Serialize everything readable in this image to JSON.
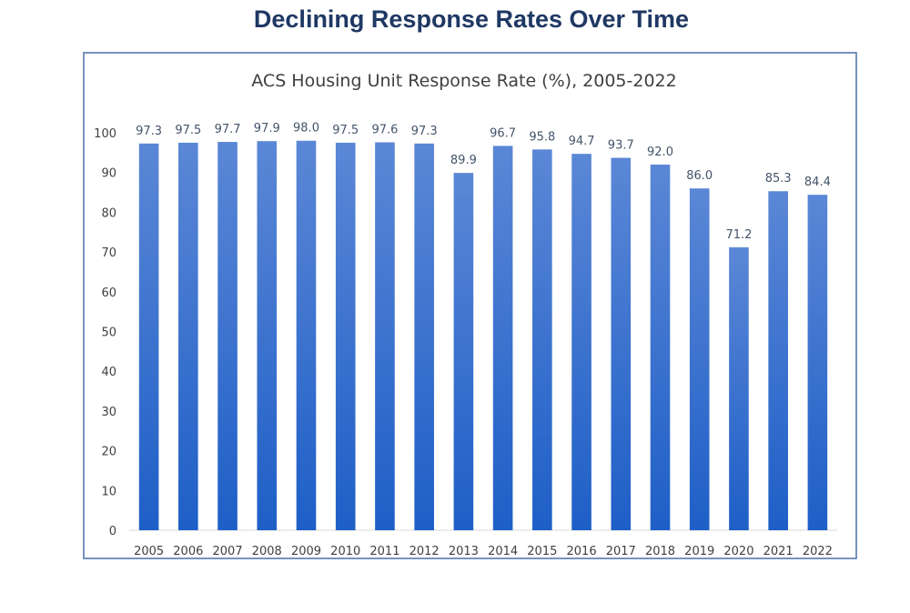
{
  "page_title": "Declining Response Rates Over Time",
  "chart_data": {
    "type": "bar",
    "title": "ACS Housing Unit Response Rate (%), 2005-2022",
    "xlabel": "",
    "ylabel": "",
    "categories": [
      "2005",
      "2006",
      "2007",
      "2008",
      "2009",
      "2010",
      "2011",
      "2012",
      "2013",
      "2014",
      "2015",
      "2016",
      "2017",
      "2018",
      "2019",
      "2020",
      "2021",
      "2022"
    ],
    "values": [
      97.3,
      97.5,
      97.7,
      97.9,
      98.0,
      97.5,
      97.6,
      97.3,
      89.9,
      96.7,
      95.8,
      94.7,
      93.7,
      92.0,
      86.0,
      71.2,
      85.3,
      84.4
    ],
    "data_labels": [
      "97.3",
      "97.5",
      "97.7",
      "97.9",
      "98.0",
      "97.5",
      "97.6",
      "97.3",
      "89.9",
      "96.7",
      "95.8",
      "94.7",
      "93.7",
      "92.0",
      "86.0",
      "71.2",
      "85.3",
      "84.4"
    ],
    "ylim": [
      0,
      100
    ],
    "yticks": [
      0,
      10,
      20,
      30,
      40,
      50,
      60,
      70,
      80,
      90,
      100
    ],
    "grid": false,
    "legend": "none",
    "colors": {
      "bar_top": "#5b87d6",
      "bar_bottom": "#1e5fc7",
      "title": "#1f3864",
      "axis_line": "#d9d9d9"
    }
  }
}
